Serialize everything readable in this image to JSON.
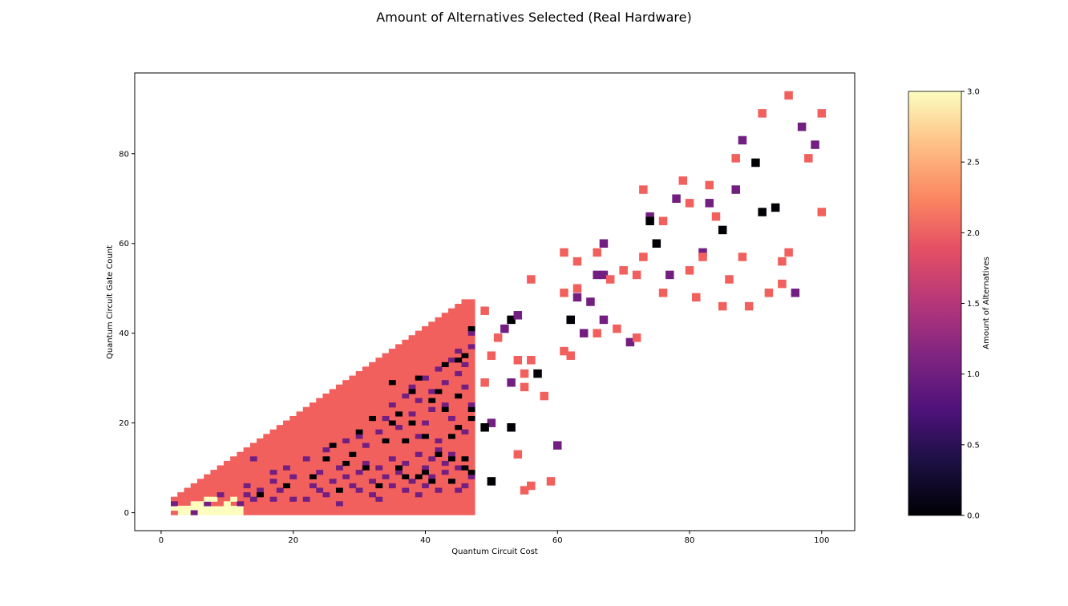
{
  "chart_data": {
    "type": "heatmap",
    "title": "Amount of Alternatives Selected (Real Hardware)",
    "xlabel": "Quantum Circuit Cost",
    "ylabel": "Quantum Circuit Gate Count",
    "xlim": [
      -4,
      105
    ],
    "ylim": [
      -4,
      98
    ],
    "xticks": [
      0,
      20,
      40,
      60,
      80,
      100
    ],
    "yticks": [
      0,
      20,
      40,
      60,
      80
    ],
    "colorbar": {
      "label": "Amount of Alternatives",
      "range": [
        0,
        3
      ],
      "ticks": [
        "0.0",
        "0.5",
        "1.0",
        "1.5",
        "2.0",
        "2.5",
        "3.0"
      ],
      "colormap": "magma",
      "colors": {
        "0": "#000004",
        "1": "#721f81",
        "2": "#f1605d",
        "3": "#fcfdbf"
      }
    },
    "legend": "colorbar right",
    "grid": false,
    "dense_region": {
      "x_range": [
        2,
        47
      ],
      "upper_edge_y": "approximately x + 1 for each x (gate count <= cost + 1)",
      "dominant_value": 2,
      "low_cost_value": 3
    },
    "points": [
      {
        "x": 2,
        "y": 0,
        "v": 2
      },
      {
        "x": 2,
        "y": 1,
        "v": 3
      },
      {
        "x": 2,
        "y": 2,
        "v": 1
      },
      {
        "x": 3,
        "y": 1,
        "v": 3
      },
      {
        "x": 4,
        "y": 1,
        "v": 3
      },
      {
        "x": 5,
        "y": 0,
        "v": 1
      },
      {
        "x": 5,
        "y": 2,
        "v": 3
      },
      {
        "x": 6,
        "y": 2,
        "v": 3
      },
      {
        "x": 7,
        "y": 2,
        "v": 1
      },
      {
        "x": 7,
        "y": 3,
        "v": 3
      },
      {
        "x": 8,
        "y": 3,
        "v": 3
      },
      {
        "x": 9,
        "y": 4,
        "v": 1
      },
      {
        "x": 10,
        "y": 2,
        "v": 3
      },
      {
        "x": 11,
        "y": 1,
        "v": 3
      },
      {
        "x": 11,
        "y": 3,
        "v": 3
      },
      {
        "x": 12,
        "y": 2,
        "v": 1
      },
      {
        "x": 13,
        "y": 4,
        "v": 1
      },
      {
        "x": 13,
        "y": 6,
        "v": 1
      },
      {
        "x": 14,
        "y": 3,
        "v": 1
      },
      {
        "x": 15,
        "y": 5,
        "v": 1
      },
      {
        "x": 16,
        "y": 2,
        "v": 2
      },
      {
        "x": 17,
        "y": 3,
        "v": 1
      },
      {
        "x": 17,
        "y": 7,
        "v": 1
      },
      {
        "x": 18,
        "y": 5,
        "v": 1
      },
      {
        "x": 20,
        "y": 3,
        "v": 1
      },
      {
        "x": 20,
        "y": 8,
        "v": 1
      },
      {
        "x": 21,
        "y": 2,
        "v": 2
      },
      {
        "x": 22,
        "y": 3,
        "v": 1
      },
      {
        "x": 23,
        "y": 6,
        "v": 1
      },
      {
        "x": 24,
        "y": 5,
        "v": 1
      },
      {
        "x": 24,
        "y": 9,
        "v": 1
      },
      {
        "x": 25,
        "y": 4,
        "v": 1
      },
      {
        "x": 26,
        "y": 7,
        "v": 1
      },
      {
        "x": 27,
        "y": 2,
        "v": 1
      },
      {
        "x": 27,
        "y": 10,
        "v": 1
      },
      {
        "x": 28,
        "y": 8,
        "v": 1
      },
      {
        "x": 29,
        "y": 6,
        "v": 1
      },
      {
        "x": 30,
        "y": 5,
        "v": 1
      },
      {
        "x": 30,
        "y": 9,
        "v": 1
      },
      {
        "x": 31,
        "y": 11,
        "v": 1
      },
      {
        "x": 32,
        "y": 4,
        "v": 1
      },
      {
        "x": 32,
        "y": 7,
        "v": 1
      },
      {
        "x": 33,
        "y": 3,
        "v": 1
      },
      {
        "x": 33,
        "y": 10,
        "v": 1
      },
      {
        "x": 34,
        "y": 8,
        "v": 1
      },
      {
        "x": 35,
        "y": 6,
        "v": 1
      },
      {
        "x": 35,
        "y": 12,
        "v": 1
      },
      {
        "x": 36,
        "y": 9,
        "v": 1
      },
      {
        "x": 37,
        "y": 5,
        "v": 1
      },
      {
        "x": 37,
        "y": 11,
        "v": 1
      },
      {
        "x": 38,
        "y": 7,
        "v": 1
      },
      {
        "x": 39,
        "y": 4,
        "v": 1
      },
      {
        "x": 39,
        "y": 13,
        "v": 1
      },
      {
        "x": 40,
        "y": 6,
        "v": 1
      },
      {
        "x": 40,
        "y": 10,
        "v": 1
      },
      {
        "x": 41,
        "y": 8,
        "v": 1
      },
      {
        "x": 41,
        "y": 12,
        "v": 1
      },
      {
        "x": 42,
        "y": 5,
        "v": 1
      },
      {
        "x": 42,
        "y": 14,
        "v": 1
      },
      {
        "x": 43,
        "y": 9,
        "v": 1
      },
      {
        "x": 43,
        "y": 11,
        "v": 1
      },
      {
        "x": 44,
        "y": 7,
        "v": 1
      },
      {
        "x": 44,
        "y": 13,
        "v": 1
      },
      {
        "x": 45,
        "y": 5,
        "v": 1
      },
      {
        "x": 45,
        "y": 10,
        "v": 1
      },
      {
        "x": 46,
        "y": 6,
        "v": 1
      },
      {
        "x": 46,
        "y": 12,
        "v": 1
      },
      {
        "x": 47,
        "y": 8,
        "v": 1
      },
      {
        "x": 14,
        "y": 12,
        "v": 1
      },
      {
        "x": 17,
        "y": 9,
        "v": 1
      },
      {
        "x": 19,
        "y": 10,
        "v": 1
      },
      {
        "x": 22,
        "y": 12,
        "v": 1
      },
      {
        "x": 25,
        "y": 14,
        "v": 1
      },
      {
        "x": 28,
        "y": 16,
        "v": 1
      },
      {
        "x": 30,
        "y": 17,
        "v": 1
      },
      {
        "x": 31,
        "y": 15,
        "v": 1
      },
      {
        "x": 33,
        "y": 18,
        "v": 1
      },
      {
        "x": 34,
        "y": 21,
        "v": 1
      },
      {
        "x": 35,
        "y": 24,
        "v": 1
      },
      {
        "x": 36,
        "y": 19,
        "v": 1
      },
      {
        "x": 37,
        "y": 26,
        "v": 1
      },
      {
        "x": 38,
        "y": 22,
        "v": 1
      },
      {
        "x": 38,
        "y": 28,
        "v": 1
      },
      {
        "x": 39,
        "y": 17,
        "v": 1
      },
      {
        "x": 39,
        "y": 25,
        "v": 1
      },
      {
        "x": 40,
        "y": 20,
        "v": 1
      },
      {
        "x": 40,
        "y": 30,
        "v": 1
      },
      {
        "x": 41,
        "y": 23,
        "v": 1
      },
      {
        "x": 41,
        "y": 27,
        "v": 1
      },
      {
        "x": 42,
        "y": 16,
        "v": 1
      },
      {
        "x": 42,
        "y": 32,
        "v": 1
      },
      {
        "x": 43,
        "y": 24,
        "v": 1
      },
      {
        "x": 43,
        "y": 29,
        "v": 1
      },
      {
        "x": 44,
        "y": 21,
        "v": 1
      },
      {
        "x": 44,
        "y": 34,
        "v": 1
      },
      {
        "x": 45,
        "y": 26,
        "v": 1
      },
      {
        "x": 45,
        "y": 31,
        "v": 1
      },
      {
        "x": 45,
        "y": 36,
        "v": 1
      },
      {
        "x": 46,
        "y": 18,
        "v": 1
      },
      {
        "x": 46,
        "y": 28,
        "v": 1
      },
      {
        "x": 46,
        "y": 33,
        "v": 1
      },
      {
        "x": 47,
        "y": 37,
        "v": 1
      },
      {
        "x": 47,
        "y": 40,
        "v": 1
      },
      {
        "x": 47,
        "y": 24,
        "v": 1
      },
      {
        "x": 15,
        "y": 4,
        "v": 0
      },
      {
        "x": 19,
        "y": 6,
        "v": 0
      },
      {
        "x": 23,
        "y": 8,
        "v": 0
      },
      {
        "x": 25,
        "y": 12,
        "v": 0
      },
      {
        "x": 26,
        "y": 15,
        "v": 0
      },
      {
        "x": 27,
        "y": 5,
        "v": 0
      },
      {
        "x": 28,
        "y": 11,
        "v": 0
      },
      {
        "x": 29,
        "y": 13,
        "v": 0
      },
      {
        "x": 30,
        "y": 18,
        "v": 0
      },
      {
        "x": 31,
        "y": 10,
        "v": 0
      },
      {
        "x": 32,
        "y": 21,
        "v": 0
      },
      {
        "x": 33,
        "y": 6,
        "v": 0
      },
      {
        "x": 34,
        "y": 16,
        "v": 0
      },
      {
        "x": 35,
        "y": 29,
        "v": 0
      },
      {
        "x": 35,
        "y": 20,
        "v": 0
      },
      {
        "x": 36,
        "y": 10,
        "v": 0
      },
      {
        "x": 36,
        "y": 22,
        "v": 0
      },
      {
        "x": 37,
        "y": 8,
        "v": 0
      },
      {
        "x": 37,
        "y": 16,
        "v": 0
      },
      {
        "x": 38,
        "y": 20,
        "v": 0
      },
      {
        "x": 38,
        "y": 27,
        "v": 0
      },
      {
        "x": 39,
        "y": 8,
        "v": 0
      },
      {
        "x": 39,
        "y": 30,
        "v": 0
      },
      {
        "x": 40,
        "y": 17,
        "v": 0
      },
      {
        "x": 40,
        "y": 9,
        "v": 0
      },
      {
        "x": 41,
        "y": 7,
        "v": 0
      },
      {
        "x": 41,
        "y": 25,
        "v": 0
      },
      {
        "x": 42,
        "y": 13,
        "v": 0
      },
      {
        "x": 42,
        "y": 27,
        "v": 0
      },
      {
        "x": 43,
        "y": 23,
        "v": 0
      },
      {
        "x": 43,
        "y": 33,
        "v": 0
      },
      {
        "x": 44,
        "y": 12,
        "v": 0
      },
      {
        "x": 44,
        "y": 17,
        "v": 0
      },
      {
        "x": 44,
        "y": 7,
        "v": 0
      },
      {
        "x": 45,
        "y": 34,
        "v": 0
      },
      {
        "x": 45,
        "y": 19,
        "v": 0
      },
      {
        "x": 45,
        "y": 26,
        "v": 0
      },
      {
        "x": 46,
        "y": 10,
        "v": 0
      },
      {
        "x": 46,
        "y": 35,
        "v": 0
      },
      {
        "x": 46,
        "y": 12,
        "v": 0
      },
      {
        "x": 47,
        "y": 9,
        "v": 0
      },
      {
        "x": 47,
        "y": 21,
        "v": 0
      },
      {
        "x": 47,
        "y": 23,
        "v": 0
      },
      {
        "x": 47,
        "y": 41,
        "v": 0
      },
      {
        "x": 49,
        "y": 45,
        "v": 2
      },
      {
        "x": 49,
        "y": 29,
        "v": 2
      },
      {
        "x": 50,
        "y": 35,
        "v": 2
      },
      {
        "x": 50,
        "y": 20,
        "v": 1
      },
      {
        "x": 50,
        "y": 7,
        "v": 0
      },
      {
        "x": 49,
        "y": 19,
        "v": 0
      },
      {
        "x": 51,
        "y": 39,
        "v": 2
      },
      {
        "x": 52,
        "y": 41,
        "v": 1
      },
      {
        "x": 53,
        "y": 43,
        "v": 0
      },
      {
        "x": 53,
        "y": 29,
        "v": 1
      },
      {
        "x": 53,
        "y": 19,
        "v": 0
      },
      {
        "x": 54,
        "y": 44,
        "v": 1
      },
      {
        "x": 54,
        "y": 34,
        "v": 2
      },
      {
        "x": 54,
        "y": 13,
        "v": 2
      },
      {
        "x": 55,
        "y": 31,
        "v": 2
      },
      {
        "x": 55,
        "y": 28,
        "v": 2
      },
      {
        "x": 55,
        "y": 5,
        "v": 2
      },
      {
        "x": 56,
        "y": 52,
        "v": 2
      },
      {
        "x": 56,
        "y": 34,
        "v": 2
      },
      {
        "x": 56,
        "y": 6,
        "v": 2
      },
      {
        "x": 57,
        "y": 31,
        "v": 0
      },
      {
        "x": 58,
        "y": 26,
        "v": 2
      },
      {
        "x": 59,
        "y": 7,
        "v": 2
      },
      {
        "x": 60,
        "y": 15,
        "v": 1
      },
      {
        "x": 61,
        "y": 58,
        "v": 2
      },
      {
        "x": 61,
        "y": 49,
        "v": 2
      },
      {
        "x": 61,
        "y": 36,
        "v": 2
      },
      {
        "x": 62,
        "y": 43,
        "v": 0
      },
      {
        "x": 62,
        "y": 35,
        "v": 2
      },
      {
        "x": 63,
        "y": 56,
        "v": 2
      },
      {
        "x": 63,
        "y": 50,
        "v": 2
      },
      {
        "x": 63,
        "y": 48,
        "v": 1
      },
      {
        "x": 64,
        "y": 40,
        "v": 1
      },
      {
        "x": 65,
        "y": 47,
        "v": 1
      },
      {
        "x": 66,
        "y": 58,
        "v": 2
      },
      {
        "x": 66,
        "y": 53,
        "v": 1
      },
      {
        "x": 66,
        "y": 40,
        "v": 2
      },
      {
        "x": 67,
        "y": 60,
        "v": 1
      },
      {
        "x": 67,
        "y": 53,
        "v": 1
      },
      {
        "x": 67,
        "y": 43,
        "v": 1
      },
      {
        "x": 68,
        "y": 52,
        "v": 2
      },
      {
        "x": 69,
        "y": 41,
        "v": 2
      },
      {
        "x": 70,
        "y": 54,
        "v": 2
      },
      {
        "x": 71,
        "y": 38,
        "v": 1
      },
      {
        "x": 72,
        "y": 53,
        "v": 2
      },
      {
        "x": 72,
        "y": 39,
        "v": 2
      },
      {
        "x": 73,
        "y": 72,
        "v": 2
      },
      {
        "x": 73,
        "y": 57,
        "v": 2
      },
      {
        "x": 74,
        "y": 66,
        "v": 1
      },
      {
        "x": 74,
        "y": 65,
        "v": 0
      },
      {
        "x": 75,
        "y": 60,
        "v": 0
      },
      {
        "x": 76,
        "y": 65,
        "v": 2
      },
      {
        "x": 76,
        "y": 49,
        "v": 2
      },
      {
        "x": 77,
        "y": 53,
        "v": 1
      },
      {
        "x": 78,
        "y": 70,
        "v": 1
      },
      {
        "x": 79,
        "y": 74,
        "v": 2
      },
      {
        "x": 80,
        "y": 69,
        "v": 2
      },
      {
        "x": 80,
        "y": 54,
        "v": 2
      },
      {
        "x": 81,
        "y": 48,
        "v": 2
      },
      {
        "x": 82,
        "y": 58,
        "v": 1
      },
      {
        "x": 82,
        "y": 57,
        "v": 2
      },
      {
        "x": 83,
        "y": 73,
        "v": 2
      },
      {
        "x": 83,
        "y": 69,
        "v": 1
      },
      {
        "x": 84,
        "y": 66,
        "v": 2
      },
      {
        "x": 85,
        "y": 63,
        "v": 0
      },
      {
        "x": 85,
        "y": 46,
        "v": 2
      },
      {
        "x": 86,
        "y": 52,
        "v": 2
      },
      {
        "x": 87,
        "y": 79,
        "v": 2
      },
      {
        "x": 87,
        "y": 72,
        "v": 1
      },
      {
        "x": 88,
        "y": 83,
        "v": 1
      },
      {
        "x": 88,
        "y": 57,
        "v": 2
      },
      {
        "x": 89,
        "y": 46,
        "v": 2
      },
      {
        "x": 90,
        "y": 78,
        "v": 0
      },
      {
        "x": 91,
        "y": 89,
        "v": 2
      },
      {
        "x": 91,
        "y": 67,
        "v": 0
      },
      {
        "x": 92,
        "y": 49,
        "v": 2
      },
      {
        "x": 93,
        "y": 68,
        "v": 0
      },
      {
        "x": 94,
        "y": 56,
        "v": 2
      },
      {
        "x": 94,
        "y": 51,
        "v": 2
      },
      {
        "x": 95,
        "y": 93,
        "v": 2
      },
      {
        "x": 95,
        "y": 58,
        "v": 2
      },
      {
        "x": 96,
        "y": 49,
        "v": 1
      },
      {
        "x": 97,
        "y": 86,
        "v": 1
      },
      {
        "x": 98,
        "y": 79,
        "v": 2
      },
      {
        "x": 99,
        "y": 82,
        "v": 1
      },
      {
        "x": 100,
        "y": 89,
        "v": 2
      },
      {
        "x": 100,
        "y": 67,
        "v": 2
      }
    ]
  }
}
